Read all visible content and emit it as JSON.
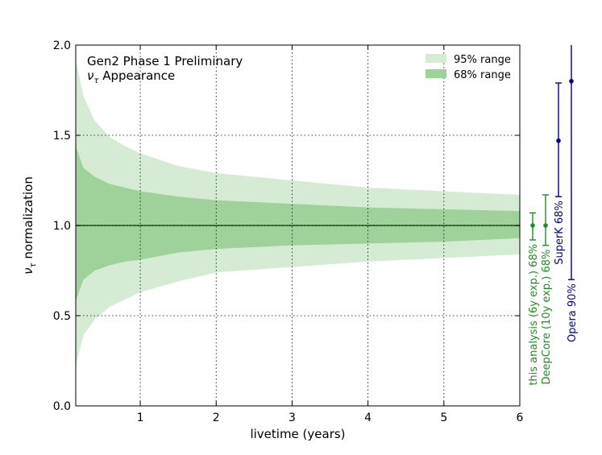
{
  "chart_data": {
    "type": "area",
    "annotation_line1": "Gen2 Phase 1 Preliminary",
    "annotation_line2_symbol": "ν",
    "annotation_line2_subscript": "τ",
    "annotation_line2_text": " Appearance",
    "xlabel": "livetime (years)",
    "ylabel_symbol": "ν",
    "ylabel_subscript": "τ",
    "ylabel_text": " normalization",
    "xlim": [
      0.15,
      6.0
    ],
    "ylim": [
      0.0,
      2.0
    ],
    "x_ticks": [
      1,
      2,
      3,
      4,
      5,
      6
    ],
    "x_tick_labels": [
      "1",
      "2",
      "3",
      "4",
      "5",
      "6"
    ],
    "y_ticks": [
      0.0,
      0.5,
      1.0,
      1.5,
      2.0
    ],
    "y_tick_labels": [
      "0.0",
      "0.5",
      "1.0",
      "1.5",
      "2.0"
    ],
    "grid": true,
    "legend_position": "top-right",
    "reference_value": 1.0,
    "bands": [
      {
        "name": "95% range",
        "color": "#d6ebd4",
        "x": [
          0.15,
          0.25,
          0.4,
          0.6,
          0.8,
          1.0,
          1.5,
          2.0,
          3.0,
          4.0,
          5.0,
          6.0
        ],
        "upper": [
          1.92,
          1.72,
          1.58,
          1.49,
          1.44,
          1.4,
          1.33,
          1.29,
          1.25,
          1.21,
          1.19,
          1.17
        ],
        "lower": [
          0.22,
          0.39,
          0.48,
          0.55,
          0.59,
          0.63,
          0.69,
          0.74,
          0.77,
          0.8,
          0.82,
          0.84
        ]
      },
      {
        "name": "68% range",
        "color": "#9fd19a",
        "x": [
          0.15,
          0.25,
          0.4,
          0.6,
          0.8,
          1.0,
          1.5,
          2.0,
          3.0,
          4.0,
          5.0,
          6.0
        ],
        "upper": [
          1.44,
          1.32,
          1.27,
          1.23,
          1.21,
          1.19,
          1.16,
          1.14,
          1.12,
          1.1,
          1.09,
          1.08
        ],
        "lower": [
          0.58,
          0.7,
          0.75,
          0.78,
          0.8,
          0.81,
          0.85,
          0.87,
          0.89,
          0.9,
          0.91,
          0.93
        ]
      }
    ],
    "center_line_color": "#1a5c1a",
    "measurements": [
      {
        "label": "this analysis (6y exp.) 68%",
        "central": 1.0,
        "low": 0.92,
        "high": 1.07,
        "color": "#228b22"
      },
      {
        "label": "DeepCore (10y exp.) 68%",
        "central": 1.0,
        "low": 0.89,
        "high": 1.17,
        "color": "#228b22"
      },
      {
        "label": "SuperK 68%",
        "central": 1.47,
        "low": 1.16,
        "high": 1.79,
        "color": "#000080"
      },
      {
        "label": "Opera 90%",
        "central": 1.8,
        "low": 0.7,
        "high": 2.0,
        "color": "#000080"
      }
    ]
  }
}
